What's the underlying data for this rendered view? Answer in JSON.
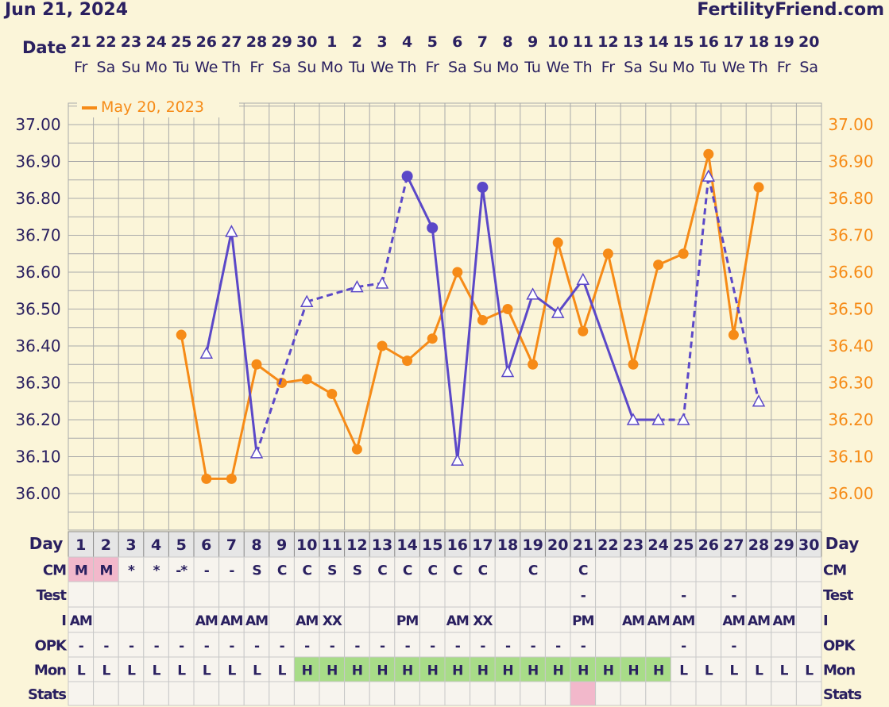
{
  "header": {
    "date": "Jun 21, 2024",
    "site": "FertilityFriend.com"
  },
  "labels": {
    "date": "Date",
    "day": "Day",
    "rows": [
      "CM",
      "Test",
      "I",
      "OPK",
      "Mon",
      "Stats"
    ]
  },
  "colors": {
    "background": "#fbf5d9",
    "grid": "#aaaaaa",
    "current": "#5b48c8",
    "overlay": "#f68b17",
    "text": "#2a2060",
    "menses": "#f2b8cb",
    "high": "#a8dc88",
    "stats_mark": "#f2b8cb"
  },
  "chart_data": {
    "type": "line",
    "title": "",
    "dates": [
      "21",
      "22",
      "23",
      "24",
      "25",
      "26",
      "27",
      "28",
      "29",
      "30",
      "1",
      "2",
      "3",
      "4",
      "5",
      "6",
      "7",
      "8",
      "9",
      "10",
      "11",
      "12",
      "13",
      "14",
      "15",
      "16",
      "17",
      "18",
      "19",
      "20"
    ],
    "weekdays": [
      "Fr",
      "Sa",
      "Su",
      "Mo",
      "Tu",
      "We",
      "Th",
      "Fr",
      "Sa",
      "Su",
      "Mo",
      "Tu",
      "We",
      "Th",
      "Fr",
      "Sa",
      "Su",
      "Mo",
      "Tu",
      "We",
      "Th",
      "Fr",
      "Sa",
      "Su",
      "Mo",
      "Tu",
      "We",
      "Th",
      "Fr",
      "Sa"
    ],
    "cycle_days": [
      "1",
      "2",
      "3",
      "4",
      "5",
      "6",
      "7",
      "8",
      "9",
      "10",
      "11",
      "12",
      "13",
      "14",
      "15",
      "16",
      "17",
      "18",
      "19",
      "20",
      "21",
      "22",
      "23",
      "24",
      "25",
      "26",
      "27",
      "28",
      "29",
      "30"
    ],
    "ylim": [
      35.9,
      37.1
    ],
    "yticks": [
      "37.00",
      "36.90",
      "36.80",
      "36.70",
      "36.60",
      "36.50",
      "36.40",
      "36.30",
      "36.20",
      "36.10",
      "36.00"
    ],
    "legend": "top-left",
    "series": [
      {
        "name": "",
        "role": "current",
        "values": [
          null,
          null,
          null,
          null,
          null,
          36.38,
          36.71,
          36.11,
          null,
          36.52,
          null,
          36.56,
          36.57,
          36.86,
          36.72,
          36.09,
          36.83,
          36.33,
          36.54,
          36.49,
          36.58,
          null,
          36.2,
          36.2,
          36.2,
          36.86,
          null,
          36.25,
          null,
          null
        ],
        "markers": [
          null,
          null,
          null,
          null,
          null,
          "open",
          "open",
          "open",
          null,
          "open",
          null,
          "open",
          "open",
          "filled",
          "filled",
          "open",
          "filled",
          "open",
          "open",
          "open",
          "open",
          null,
          "open",
          "open",
          "open",
          "open",
          null,
          "open",
          null,
          null
        ],
        "links": [
          "solid",
          "solid",
          "dashed",
          "dashed",
          "dashed",
          "dashed",
          "solid",
          "solid",
          "solid",
          "solid",
          "solid",
          "solid",
          "solid",
          "solid",
          "solid",
          "dashed",
          "dashed",
          "dashed",
          "solid",
          "solid"
        ]
      },
      {
        "name": "May 20, 2023",
        "role": "overlay",
        "values": [
          null,
          null,
          null,
          null,
          36.43,
          36.04,
          36.04,
          36.35,
          36.3,
          36.31,
          36.27,
          36.12,
          36.4,
          36.36,
          36.42,
          36.6,
          36.47,
          36.5,
          36.35,
          36.68,
          36.44,
          36.65,
          36.35,
          36.62,
          36.65,
          36.92,
          36.43,
          36.83,
          null,
          null
        ]
      }
    ],
    "rows": {
      "CM": [
        "M",
        "M",
        "*",
        "*",
        "-*",
        "-",
        "-",
        "S",
        "C",
        "C",
        "S",
        "S",
        "C",
        "C",
        "C",
        "C",
        "C",
        "",
        "C",
        "",
        "C",
        "",
        "",
        "",
        "",
        "",
        "",
        "",
        "",
        ""
      ],
      "Test": [
        "",
        "",
        "",
        "",
        "",
        "",
        "",
        "",
        "",
        "",
        "",
        "",
        "",
        "",
        "",
        "",
        "",
        "",
        "",
        "",
        "-",
        "",
        "",
        "",
        "-",
        "",
        "-",
        "",
        "",
        ""
      ],
      "I": [
        "AM",
        "",
        "",
        "",
        "",
        "AM",
        "AM",
        "AM",
        "",
        "AM",
        "XX",
        "",
        "",
        "PM",
        "",
        "AM",
        "XX",
        "",
        "",
        "",
        "PM",
        "",
        "AM",
        "AM",
        "AM",
        "",
        "AM",
        "AM",
        "AM",
        ""
      ],
      "OPK": [
        "-",
        "-",
        "-",
        "-",
        "-",
        "-",
        "-",
        "-",
        "-",
        "-",
        "-",
        "-",
        "-",
        "-",
        "-",
        "-",
        "-",
        "-",
        "-",
        "-",
        "-",
        "",
        "",
        "",
        "-",
        "",
        "-",
        "",
        "",
        ""
      ],
      "Mon": [
        "L",
        "L",
        "L",
        "L",
        "L",
        "L",
        "L",
        "L",
        "L",
        "H",
        "H",
        "H",
        "H",
        "H",
        "H",
        "H",
        "H",
        "H",
        "H",
        "H",
        "H",
        "H",
        "H",
        "H",
        "L",
        "L",
        "L",
        "L",
        "L",
        "L"
      ],
      "Stats": [
        "",
        "",
        "",
        "",
        "",
        "",
        "",
        "",
        "",
        "",
        "",
        "",
        "",
        "",
        "",
        "",
        "",
        "",
        "",
        "",
        "mark",
        "",
        "",
        "",
        "",
        "",
        "",
        "",
        "",
        ""
      ]
    }
  }
}
